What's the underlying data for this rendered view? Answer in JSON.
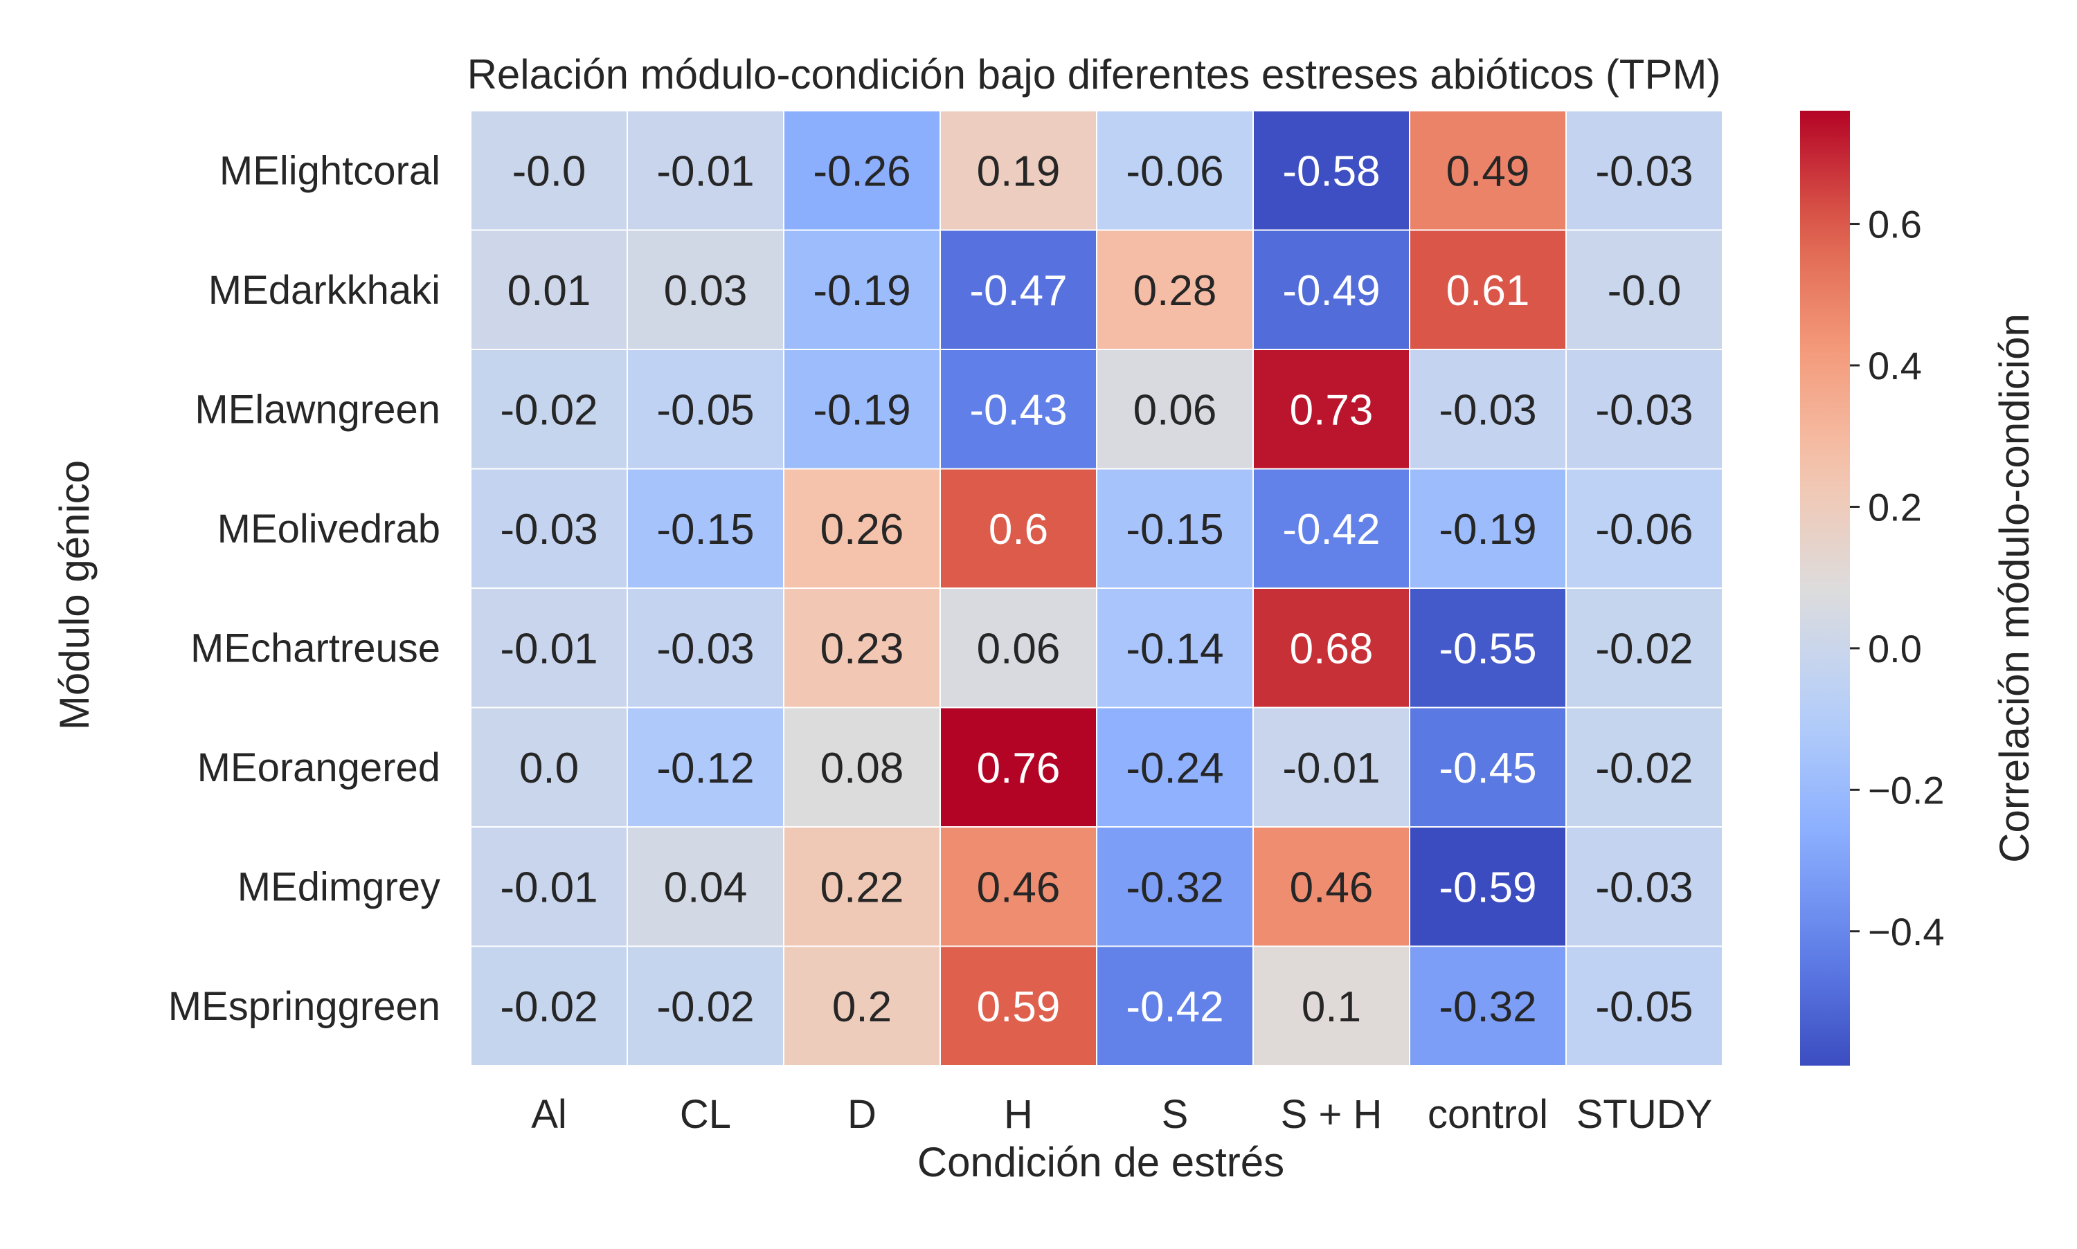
{
  "chart_data": {
    "type": "heatmap",
    "title": "Relación módulo-condición bajo diferentes estreses abióticos (TPM)",
    "xlabel": "Condición de estrés",
    "ylabel": "Módulo génico",
    "x_categories": [
      "Al",
      "CL",
      "D",
      "H",
      "S",
      "S + H",
      "control",
      "STUDY"
    ],
    "y_categories": [
      "MElightcoral",
      "MEdarkkhaki",
      "MElawngreen",
      "MEolivedrab",
      "MEchartreuse",
      "MEorangered",
      "MEdimgrey",
      "MEspringgreen"
    ],
    "values": [
      [
        -0.0,
        -0.01,
        -0.26,
        0.19,
        -0.06,
        -0.58,
        0.49,
        -0.03
      ],
      [
        0.01,
        0.03,
        -0.19,
        -0.47,
        0.28,
        -0.49,
        0.61,
        -0.0
      ],
      [
        -0.02,
        -0.05,
        -0.19,
        -0.43,
        0.06,
        0.73,
        -0.03,
        -0.03
      ],
      [
        -0.03,
        -0.15,
        0.26,
        0.6,
        -0.15,
        -0.42,
        -0.19,
        -0.06
      ],
      [
        -0.01,
        -0.03,
        0.23,
        0.06,
        -0.14,
        0.68,
        -0.55,
        -0.02
      ],
      [
        0.0,
        -0.12,
        0.08,
        0.76,
        -0.24,
        -0.01,
        -0.45,
        -0.02
      ],
      [
        -0.01,
        0.04,
        0.22,
        0.46,
        -0.32,
        0.46,
        -0.59,
        -0.03
      ],
      [
        -0.02,
        -0.02,
        0.2,
        0.59,
        -0.42,
        0.1,
        -0.32,
        -0.05
      ]
    ],
    "cell_labels": [
      [
        "-0.0",
        "-0.01",
        "-0.26",
        "0.19",
        "-0.06",
        "-0.58",
        "0.49",
        "-0.03"
      ],
      [
        "0.01",
        "0.03",
        "-0.19",
        "-0.47",
        "0.28",
        "-0.49",
        "0.61",
        "-0.0"
      ],
      [
        "-0.02",
        "-0.05",
        "-0.19",
        "-0.43",
        "0.06",
        "0.73",
        "-0.03",
        "-0.03"
      ],
      [
        "-0.03",
        "-0.15",
        "0.26",
        "0.6",
        "-0.15",
        "-0.42",
        "-0.19",
        "-0.06"
      ],
      [
        "-0.01",
        "-0.03",
        "0.23",
        "0.06",
        "-0.14",
        "0.68",
        "-0.55",
        "-0.02"
      ],
      [
        "0.0",
        "-0.12",
        "0.08",
        "0.76",
        "-0.24",
        "-0.01",
        "-0.45",
        "-0.02"
      ],
      [
        "-0.01",
        "0.04",
        "0.22",
        "0.46",
        "-0.32",
        "0.46",
        "-0.59",
        "-0.03"
      ],
      [
        "-0.02",
        "-0.02",
        "0.2",
        "0.59",
        "-0.42",
        "0.1",
        "-0.32",
        "-0.05"
      ]
    ],
    "colormap": "coolwarm",
    "vmin": -0.59,
    "vmax": 0.76,
    "colorbar": {
      "label": "Correlación módulo-condición",
      "ticks": [
        -0.4,
        -0.2,
        0.0,
        0.2,
        0.4,
        0.6
      ],
      "tick_labels": [
        "−0.4",
        "−0.2",
        "0.0",
        "0.2",
        "0.4",
        "0.6"
      ]
    },
    "colors": {
      "cool": "#3b4cc0",
      "neutral": "#dddcdc",
      "warm": "#b40426",
      "gridline": "#ffffff",
      "dark_text": "#262626",
      "light_text": "#ffffff"
    }
  }
}
